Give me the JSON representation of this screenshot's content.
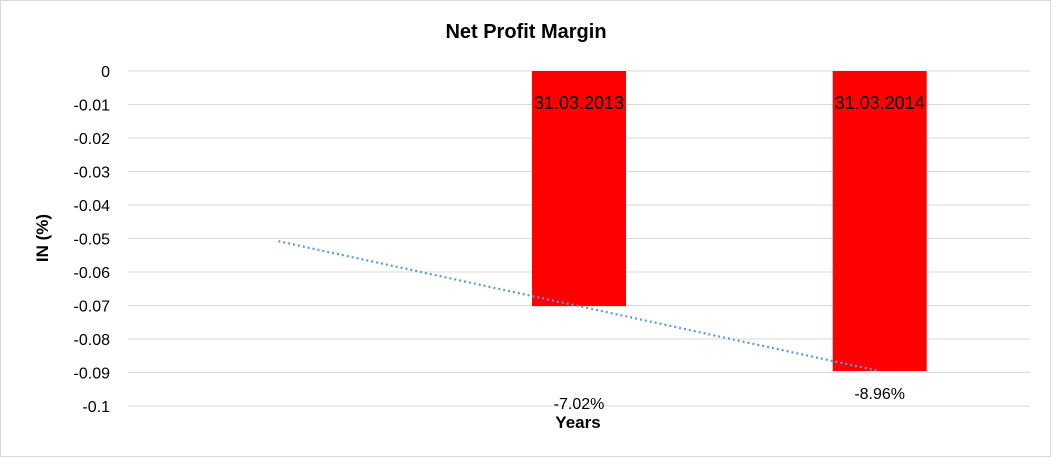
{
  "chart_data": {
    "type": "bar",
    "title": "Net Profit Margin",
    "xlabel": "Years",
    "ylabel": "IN (%)",
    "categories": [
      "31.03.2013",
      "31.03.2014"
    ],
    "values": [
      -0.0702,
      -0.0896
    ],
    "data_labels": [
      "-7.02%",
      "-8.96%"
    ],
    "ylim": [
      -0.1,
      0
    ],
    "yticks": [
      "0",
      "-0.01",
      "-0.02",
      "-0.03",
      "-0.04",
      "-0.05",
      "-0.06",
      "-0.07",
      "-0.08",
      "-0.09",
      "-0.1"
    ],
    "grid": true,
    "legend": "none",
    "trendline": {
      "type": "linear",
      "style": "dotted"
    },
    "colors": {
      "bar": "#ff0000",
      "trendline": "#5b9bd5",
      "grid": "#d9d9d9"
    }
  }
}
